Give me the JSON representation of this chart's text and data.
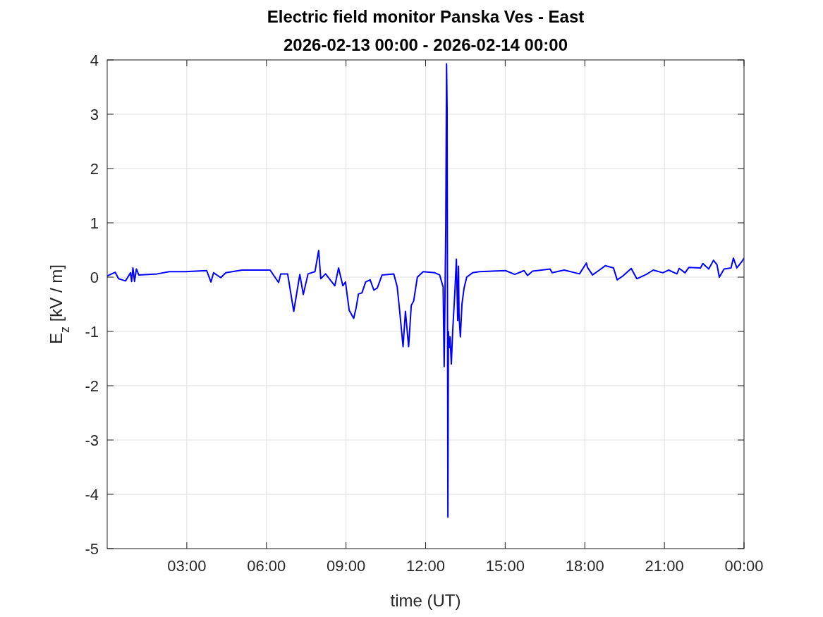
{
  "chart_data": {
    "type": "line",
    "title": "Electric field monitor Panska Ves - East",
    "subtitle": "2026-02-13 00:00 - 2026-02-14 00:00",
    "xlabel": "time (UT)",
    "ylabel": "E$_{z}$ [kV / m]",
    "xlim": [
      0,
      24
    ],
    "xticks": [
      {
        "value": 3,
        "label": "03:00"
      },
      {
        "value": 6,
        "label": "06:00"
      },
      {
        "value": 9,
        "label": "09:00"
      },
      {
        "value": 12,
        "label": "12:00"
      },
      {
        "value": 15,
        "label": "15:00"
      },
      {
        "value": 18,
        "label": "18:00"
      },
      {
        "value": 21,
        "label": "21:00"
      },
      {
        "value": 24,
        "label": "00:00"
      }
    ],
    "ylim": [
      -5,
      4
    ],
    "yticks": [
      -5,
      -4,
      -3,
      -2,
      -1,
      0,
      1,
      2,
      3,
      4
    ],
    "grid": true,
    "series": [
      {
        "color": "#0000ff",
        "x": [
          0,
          0.3,
          0.43,
          0.69,
          0.88,
          0.92,
          0.97,
          1.03,
          1.1,
          1.19,
          1.89,
          2.34,
          2.95,
          3.75,
          3.91,
          4.01,
          4.28,
          4.47,
          5.08,
          5.79,
          6.14,
          6.46,
          6.54,
          6.8,
          7.03,
          7.26,
          7.39,
          7.57,
          7.83,
          7.97,
          8.05,
          8.23,
          8.58,
          8.72,
          8.88,
          8.98,
          9.12,
          9.29,
          9.38,
          9.47,
          9.6,
          9.74,
          9.91,
          10.05,
          10.18,
          10.36,
          10.8,
          10.93,
          11.02,
          11.15,
          11.24,
          11.36,
          11.46,
          11.55,
          11.69,
          11.91,
          12.35,
          12.53,
          12.66,
          12.7,
          12.76,
          12.79,
          12.81,
          12.84,
          12.86,
          12.89,
          12.92,
          12.97,
          13.02,
          13.1,
          13.16,
          13.21,
          13.24,
          13.26,
          13.31,
          13.37,
          13.45,
          13.55,
          13.77,
          14.03,
          15.01,
          15.36,
          15.71,
          15.84,
          16.03,
          16.69,
          16.77,
          17.22,
          17.8,
          18.06,
          18.1,
          18.29,
          18.55,
          18.77,
          19.08,
          19.22,
          19.43,
          19.75,
          19.96,
          20.32,
          20.58,
          20.94,
          21.16,
          21.47,
          21.56,
          21.78,
          21.92,
          22.36,
          22.45,
          22.67,
          22.85,
          22.98,
          23.07,
          23.25,
          23.51,
          23.6,
          23.73,
          23.91,
          24
        ],
        "values": [
          0.02,
          0.09,
          -0.03,
          -0.07,
          0.08,
          -0.08,
          0.17,
          -0.08,
          0.15,
          0.04,
          0.06,
          0.1,
          0.1,
          0.12,
          -0.09,
          0.08,
          -0.01,
          0.08,
          0.13,
          0.13,
          0.13,
          -0.1,
          0.06,
          0.06,
          -0.63,
          0.05,
          -0.32,
          0.06,
          0.1,
          0.49,
          -0.03,
          0.06,
          -0.16,
          0.17,
          -0.16,
          -0.09,
          -0.61,
          -0.76,
          -0.57,
          -0.31,
          -0.29,
          -0.09,
          -0.05,
          -0.24,
          -0.2,
          0.04,
          0.06,
          -0.18,
          -0.61,
          -1.28,
          -0.63,
          -1.28,
          -0.52,
          -0.44,
          0,
          0.1,
          0.08,
          0.04,
          -0.18,
          -1.65,
          0.9,
          3.93,
          3.1,
          -4.42,
          -1,
          -1.3,
          -1.1,
          -1.6,
          -1,
          -0.3,
          0.33,
          -0.8,
          0.2,
          -0.7,
          -1.1,
          -0.5,
          -0.2,
          0,
          0.08,
          0.1,
          0.12,
          0.05,
          0.12,
          0.03,
          0.11,
          0.15,
          0.08,
          0.13,
          0.06,
          0.26,
          0.18,
          0.04,
          0.13,
          0.21,
          0.17,
          -0.05,
          0.02,
          0.16,
          -0.03,
          0.05,
          0.13,
          0.08,
          0.13,
          0.06,
          0.16,
          0.08,
          0.18,
          0.17,
          0.25,
          0.15,
          0.31,
          0.23,
          0,
          0.15,
          0.17,
          0.35,
          0.17,
          0.28,
          0.35
        ]
      }
    ]
  }
}
